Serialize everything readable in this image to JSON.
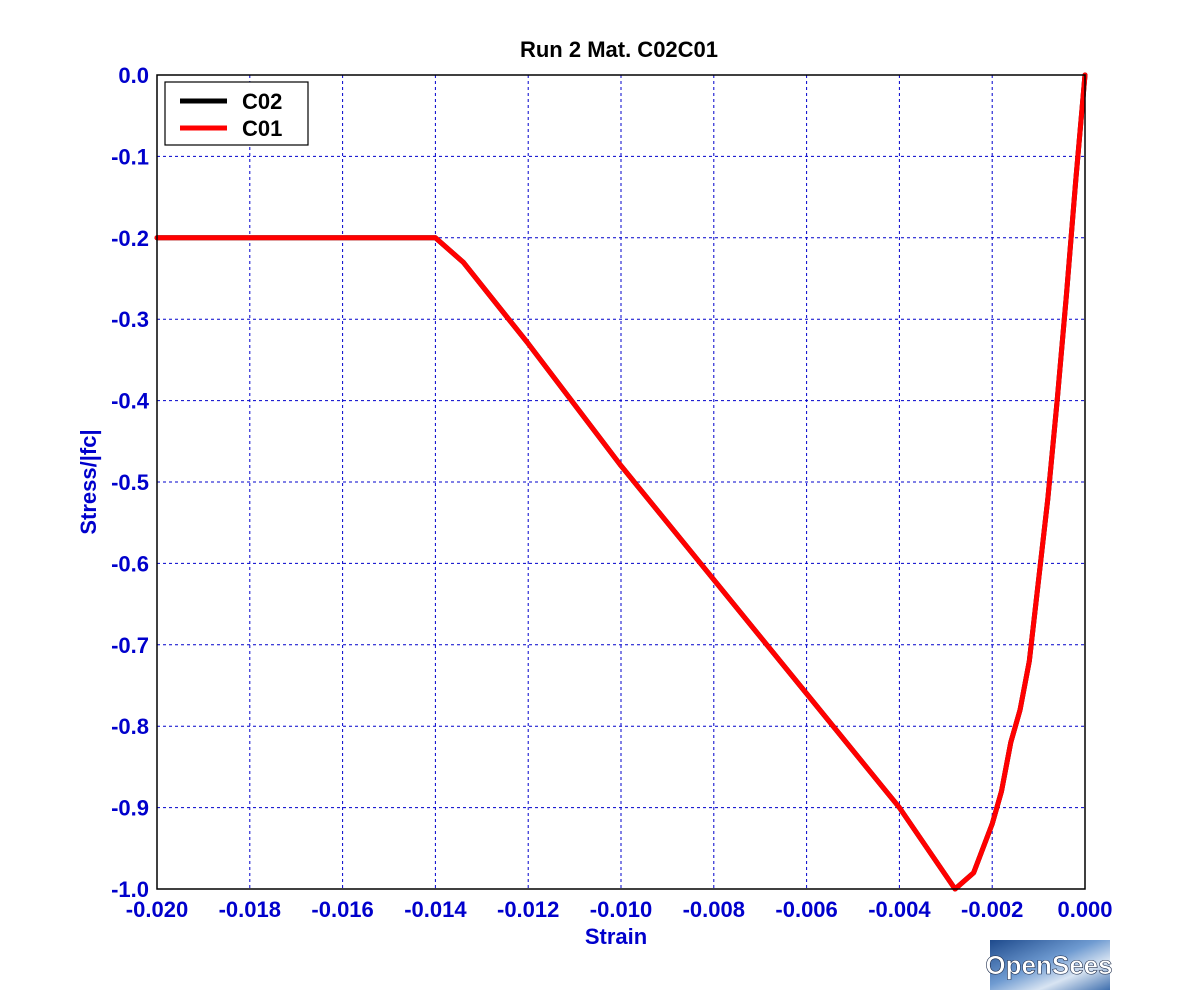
{
  "colors": {
    "axis_text": "#0000cc",
    "grid": "#0000cc",
    "frame": "#000000",
    "title_text": "#000000",
    "legend_text": "#000000"
  },
  "logo": {
    "text": "OpenSees"
  },
  "chart_data": {
    "type": "line",
    "title": "Run 2   Mat. C02C01",
    "xlabel": "Strain",
    "ylabel": "Stress/|fc|",
    "xlim": [
      -0.02,
      0.0
    ],
    "ylim": [
      -1.0,
      0.0
    ],
    "grid": true,
    "legend_position": "top-left",
    "x_ticks": [
      -0.02,
      -0.018,
      -0.016,
      -0.014,
      -0.012,
      -0.01,
      -0.008,
      -0.006,
      -0.004,
      -0.002,
      0.0
    ],
    "x_tick_labels": [
      "-0.020",
      "-0.018",
      "-0.016",
      "-0.014",
      "-0.012",
      "-0.010",
      "-0.008",
      "-0.006",
      "-0.004",
      "-0.002",
      "0.000"
    ],
    "y_ticks": [
      0.0,
      -0.1,
      -0.2,
      -0.3,
      -0.4,
      -0.5,
      -0.6,
      -0.7,
      -0.8,
      -0.9,
      -1.0
    ],
    "y_tick_labels": [
      "0.0",
      "-0.1",
      "-0.2",
      "-0.3",
      "-0.4",
      "-0.5",
      "-0.6",
      "-0.7",
      "-0.8",
      "-0.9",
      "-1.0"
    ],
    "series": [
      {
        "name": "C02",
        "color": "#000000",
        "x": [
          0.0,
          -0.0002,
          -0.0004,
          -0.0006,
          -0.0008,
          -0.001,
          -0.0012,
          -0.0014,
          -0.0016,
          -0.0018,
          -0.002,
          -0.0024,
          -0.0028,
          -0.004,
          -0.006,
          -0.008,
          -0.01,
          -0.012,
          -0.0134,
          -0.014,
          -0.016,
          -0.018,
          -0.02
        ],
        "y": [
          0.0,
          -0.13,
          -0.27,
          -0.4,
          -0.52,
          -0.62,
          -0.72,
          -0.78,
          -0.82,
          -0.88,
          -0.92,
          -0.98,
          -1.0,
          -0.9,
          -0.76,
          -0.62,
          -0.48,
          -0.33,
          -0.23,
          -0.2,
          -0.2,
          -0.2,
          -0.2
        ]
      },
      {
        "name": "C01",
        "color": "#ff0000",
        "x": [
          0.0,
          -0.0002,
          -0.0004,
          -0.0006,
          -0.0008,
          -0.001,
          -0.0012,
          -0.0014,
          -0.0016,
          -0.0018,
          -0.002,
          -0.0024,
          -0.0028,
          -0.004,
          -0.006,
          -0.008,
          -0.01,
          -0.012,
          -0.0134,
          -0.014,
          -0.016,
          -0.018,
          -0.02
        ],
        "y": [
          0.0,
          -0.13,
          -0.27,
          -0.4,
          -0.52,
          -0.62,
          -0.72,
          -0.78,
          -0.82,
          -0.88,
          -0.92,
          -0.98,
          -1.0,
          -0.9,
          -0.76,
          -0.62,
          -0.48,
          -0.33,
          -0.23,
          -0.2,
          -0.2,
          -0.2,
          -0.2
        ]
      }
    ]
  }
}
